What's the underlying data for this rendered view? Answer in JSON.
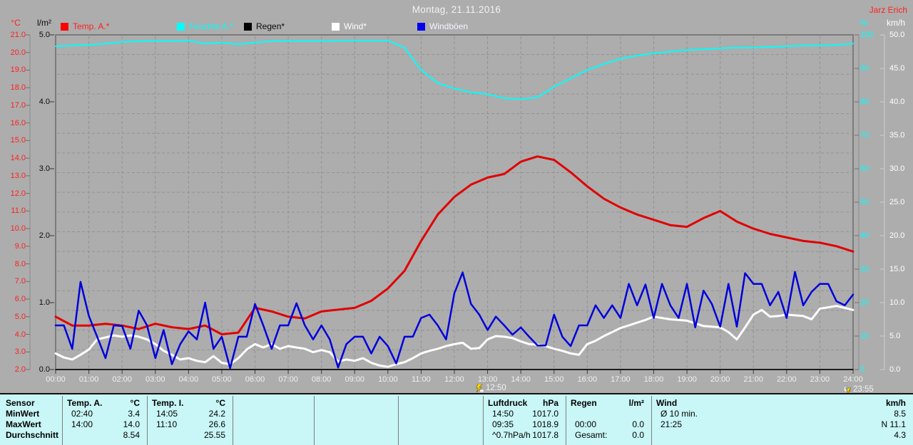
{
  "header": {
    "title": "Montag, 21.11.2016",
    "watermark": "Jarz Erich"
  },
  "axes_units": {
    "temp": "°C",
    "rain": "l/m²",
    "humidity": "%",
    "wind": "km/h"
  },
  "legend": [
    {
      "label": "Temp. A.*",
      "swatch": "#ff0000",
      "text": "#ff2020"
    },
    {
      "label": "Feuchte A.*",
      "swatch": "#00ffff",
      "text": "#00ffff"
    },
    {
      "label": "Regen*",
      "swatch": "#000000",
      "text": "#0a0a0a"
    },
    {
      "label": "Wind*",
      "swatch": "#ffffff",
      "text": "#ffffff"
    },
    {
      "label": "Windböen",
      "swatch": "#0000ee",
      "text": "#f5f5ff"
    }
  ],
  "markers": [
    {
      "time": "12:50",
      "icon": "day-event"
    },
    {
      "time": "23:55",
      "icon": "night-event"
    }
  ],
  "chart_data": {
    "type": "line",
    "title": "Montag, 21.11.2016",
    "x_hours": {
      "start": 0,
      "end": 24
    },
    "grid": true,
    "axes": {
      "temp": {
        "min": 2,
        "max": 21,
        "unit": "°C",
        "ticks": [
          "21.0",
          "20.0",
          "19.0",
          "18.0",
          "17.0",
          "16.0",
          "15.0",
          "14.0",
          "13.0",
          "12.0",
          "11.0",
          "10.0",
          "9.0",
          "8.0",
          "7.0",
          "6.0",
          "5.0",
          "4.0",
          "3.0",
          "2.0"
        ]
      },
      "rain": {
        "min": 0,
        "max": 5,
        "unit": "l/m²",
        "ticks": [
          "5.0",
          "4.0",
          "3.0",
          "2.0",
          "1.0",
          "0.0"
        ]
      },
      "humidity": {
        "min": 0,
        "max": 100,
        "unit": "%",
        "ticks": [
          "100",
          "90",
          "80",
          "70",
          "60",
          "50",
          "40",
          "30",
          "20",
          "10",
          "0"
        ]
      },
      "wind": {
        "min": 0,
        "max": 50,
        "unit": "km/h",
        "ticks": [
          "50.0",
          "45.0",
          "40.0",
          "35.0",
          "30.0",
          "25.0",
          "20.0",
          "15.0",
          "10.0",
          "5.0",
          "0.0"
        ]
      }
    },
    "time_ticks": [
      "00:00",
      "01:00",
      "02:00",
      "03:00",
      "04:00",
      "05:00",
      "06:00",
      "07:00",
      "08:00",
      "09:00",
      "10:00",
      "11:00",
      "12:00",
      "13:00",
      "14:00",
      "15:00",
      "16:00",
      "17:00",
      "18:00",
      "19:00",
      "20:00",
      "21:00",
      "22:00",
      "23:00",
      "24:00"
    ],
    "series": [
      {
        "name": "Feuchte A.",
        "axis": "humidity",
        "color": "#00ffff",
        "width": 2,
        "interval_min": 30,
        "values": [
          96.6,
          96.8,
          97.0,
          97.4,
          97.9,
          98.1,
          98.1,
          98.1,
          98.3,
          97.4,
          97.7,
          97.2,
          97.7,
          98.1,
          98.1,
          98.1,
          98.1,
          98.3,
          98.3,
          98.3,
          98.3,
          96.2,
          89.5,
          85.6,
          84.0,
          82.8,
          82.3,
          81.1,
          80.8,
          81.3,
          84.5,
          87.0,
          89.5,
          91.3,
          92.9,
          93.8,
          94.5,
          95.0,
          95.5,
          95.7,
          96.0,
          96.2,
          96.2,
          96.4,
          96.6,
          96.8,
          96.8,
          97.0,
          97.4
        ]
      },
      {
        "name": "Temp. A.",
        "axis": "temp",
        "color": "#e10000",
        "width": 3,
        "interval_min": 30,
        "values": [
          5.0,
          4.5,
          4.5,
          4.6,
          4.5,
          4.3,
          4.6,
          4.4,
          4.3,
          4.5,
          4.0,
          4.1,
          5.5,
          5.3,
          5.0,
          4.9,
          5.3,
          5.4,
          5.5,
          5.9,
          6.6,
          7.6,
          9.3,
          10.8,
          11.8,
          12.5,
          12.9,
          13.1,
          13.8,
          14.1,
          13.9,
          13.2,
          12.4,
          11.7,
          11.2,
          10.8,
          10.5,
          10.2,
          10.1,
          10.6,
          11.0,
          10.4,
          10.0,
          9.7,
          9.5,
          9.3,
          9.2,
          9.0,
          8.7
        ]
      },
      {
        "name": "Regen",
        "axis": "rain",
        "color": "#000000",
        "width": 1.5,
        "interval_min": 1440,
        "values": [
          0.0,
          0.0
        ]
      },
      {
        "name": "Wind",
        "axis": "wind",
        "color": "#ffffff",
        "width": 3,
        "interval_min": 15,
        "values": [
          2.4,
          1.8,
          1.5,
          2.2,
          3.0,
          4.5,
          4.8,
          5.1,
          4.9,
          5.1,
          4.9,
          4.5,
          3.8,
          2.8,
          2.2,
          1.5,
          1.7,
          1.3,
          1.1,
          2.0,
          1.0,
          0.8,
          1.7,
          3.0,
          3.8,
          3.3,
          3.8,
          3.1,
          3.5,
          3.3,
          3.1,
          2.6,
          2.9,
          2.6,
          1.2,
          1.5,
          1.3,
          1.7,
          1.0,
          0.6,
          0.4,
          0.8,
          1.1,
          1.7,
          2.4,
          2.8,
          3.1,
          3.5,
          3.8,
          4.0,
          3.1,
          3.2,
          4.5,
          5.0,
          4.9,
          4.7,
          4.2,
          3.8,
          3.7,
          3.5,
          3.1,
          2.8,
          2.4,
          2.2,
          3.8,
          4.3,
          5.0,
          5.6,
          6.2,
          6.6,
          7.0,
          7.4,
          7.9,
          7.7,
          7.5,
          7.4,
          7.3,
          6.9,
          6.5,
          6.4,
          6.3,
          5.6,
          4.5,
          6.3,
          8.2,
          8.9,
          7.9,
          8.0,
          8.2,
          8.1,
          8.0,
          7.5,
          9.1,
          9.3,
          9.5,
          9.2,
          8.9
        ]
      },
      {
        "name": "Windböen",
        "axis": "wind",
        "color": "#0000dd",
        "width": 2.5,
        "interval_min": 15,
        "values": [
          6.6,
          6.6,
          3.1,
          13.1,
          8.0,
          4.9,
          1.7,
          6.6,
          6.5,
          3.1,
          8.8,
          6.6,
          1.7,
          5.9,
          0.8,
          3.8,
          5.7,
          4.5,
          10.0,
          3.1,
          4.9,
          0.2,
          4.9,
          4.9,
          9.8,
          6.6,
          3.1,
          6.6,
          6.6,
          9.9,
          6.6,
          4.5,
          6.6,
          4.5,
          0.3,
          3.8,
          4.9,
          4.9,
          2.4,
          4.9,
          3.5,
          0.9,
          4.9,
          4.9,
          7.7,
          8.2,
          6.6,
          4.5,
          11.4,
          14.5,
          9.8,
          8.2,
          5.9,
          7.9,
          6.6,
          5.2,
          6.3,
          4.9,
          3.6,
          3.6,
          8.2,
          4.9,
          3.5,
          6.6,
          6.6,
          9.6,
          7.7,
          9.6,
          7.7,
          12.8,
          9.6,
          12.7,
          7.7,
          12.8,
          9.6,
          7.7,
          12.8,
          6.3,
          11.8,
          9.8,
          6.4,
          12.8,
          6.4,
          14.4,
          12.8,
          12.8,
          9.6,
          11.6,
          7.7,
          14.6,
          9.6,
          11.6,
          12.8,
          12.8,
          10.2,
          9.6,
          11.2
        ]
      }
    ]
  },
  "bottom_table": {
    "row_labels": [
      "Sensor",
      "MinWert",
      "MaxWert",
      "Durchschnitt"
    ],
    "groups": [
      {
        "name": "Temp. A.",
        "unit": "°C",
        "rows": [
          [
            "02:40",
            "3.4"
          ],
          [
            "14:00",
            "14.0"
          ],
          [
            "",
            "8.54"
          ]
        ]
      },
      {
        "name": "Temp. I.",
        "unit": "°C",
        "rows": [
          [
            "14:05",
            "24.2"
          ],
          [
            "11:10",
            "26.6"
          ],
          [
            "",
            "25.55"
          ]
        ]
      },
      {
        "name": "",
        "unit": "",
        "rows": [
          [
            "",
            ""
          ],
          [
            "",
            ""
          ],
          [
            "",
            ""
          ]
        ]
      },
      {
        "name": "",
        "unit": "",
        "rows": [
          [
            "",
            ""
          ],
          [
            "",
            ""
          ],
          [
            "",
            ""
          ]
        ]
      },
      {
        "name": "",
        "unit": "",
        "rows": [
          [
            "",
            ""
          ],
          [
            "",
            ""
          ],
          [
            "",
            ""
          ]
        ]
      },
      {
        "name": "Luftdruck",
        "unit": "hPa",
        "rows": [
          [
            "14:50",
            "1017.0"
          ],
          [
            "09:35",
            "1018.9"
          ],
          [
            "^0.7hPa/h",
            "1017.8"
          ]
        ]
      },
      {
        "name": "Regen",
        "unit": "l/m²",
        "rows": [
          [
            "",
            ""
          ],
          [
            "00:00",
            "0.0"
          ],
          [
            "Gesamt:",
            "0.0"
          ]
        ]
      },
      {
        "name": "Wind",
        "unit": "km/h",
        "rows": [
          [
            "Ø 10 min.",
            "8.5"
          ],
          [
            "21:25",
            "N 11.1"
          ],
          [
            "",
            "4.3"
          ]
        ]
      }
    ]
  }
}
